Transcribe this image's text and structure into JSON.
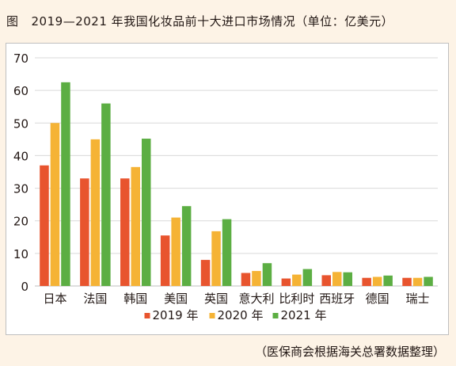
{
  "figure": {
    "label": "图",
    "title": "2019—2021 年我国化妆品前十大进口市场情况（单位：亿美元）",
    "source": "（医保商会根据海关总署数据整理）"
  },
  "chart_data": {
    "type": "bar",
    "categories": [
      "日本",
      "法国",
      "韩国",
      "美国",
      "英国",
      "意大利",
      "比利时",
      "西班牙",
      "德国",
      "瑞士"
    ],
    "series": [
      {
        "name": "2019 年",
        "color": "#e8542e",
        "values": [
          37,
          33,
          33,
          15.5,
          8,
          4,
          2.3,
          3.3,
          2.5,
          2.5
        ]
      },
      {
        "name": "2020 年",
        "color": "#f5b335",
        "values": [
          50,
          45,
          36.5,
          21,
          16.8,
          4.6,
          3.5,
          4.3,
          2.8,
          2.5
        ]
      },
      {
        "name": "2021 年",
        "color": "#5cae43",
        "values": [
          62.5,
          56,
          45.2,
          24.5,
          20.5,
          7,
          5.2,
          4.2,
          3.2,
          2.8
        ]
      }
    ],
    "ylim": [
      0,
      70
    ],
    "yticks": [
      0,
      10,
      20,
      30,
      40,
      50,
      60,
      70
    ],
    "grid": true,
    "legend_position": "bottom-center"
  }
}
